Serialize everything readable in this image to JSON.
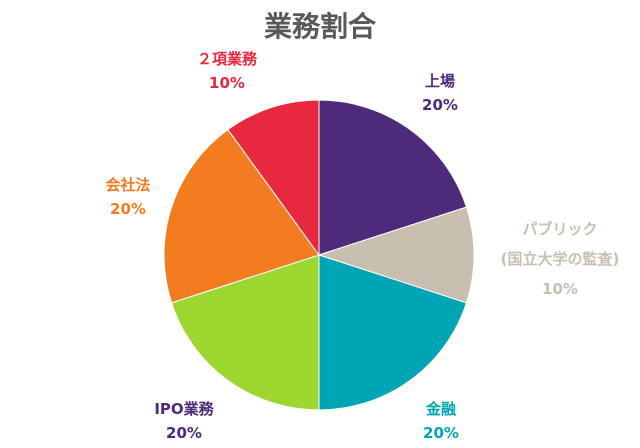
{
  "chart_data": {
    "type": "pie",
    "title": "業務割合",
    "slices": [
      {
        "label_lines": [
          "上場"
        ],
        "value": 20,
        "value_label": "20%",
        "color": "#4e2a7a"
      },
      {
        "label_lines": [
          "パブリック",
          "(国立大学の監査)"
        ],
        "value": 10,
        "value_label": "10%",
        "color": "#c8bfb0"
      },
      {
        "label_lines": [
          "金融"
        ],
        "value": 20,
        "value_label": "20%",
        "color": "#00a5b5"
      },
      {
        "label_lines": [
          "IPO業務"
        ],
        "value": 20,
        "value_label": "20%",
        "color": "#9ed630",
        "text_color": "#4e2a7a"
      },
      {
        "label_lines": [
          "会社法"
        ],
        "value": 20,
        "value_label": "20%",
        "color": "#f47c20"
      },
      {
        "label_lines": [
          "２項業務"
        ],
        "value": 10,
        "value_label": "10%",
        "color": "#e8283f"
      }
    ],
    "start_angle_deg": 0,
    "direction": "clockwise",
    "legend": "none"
  }
}
